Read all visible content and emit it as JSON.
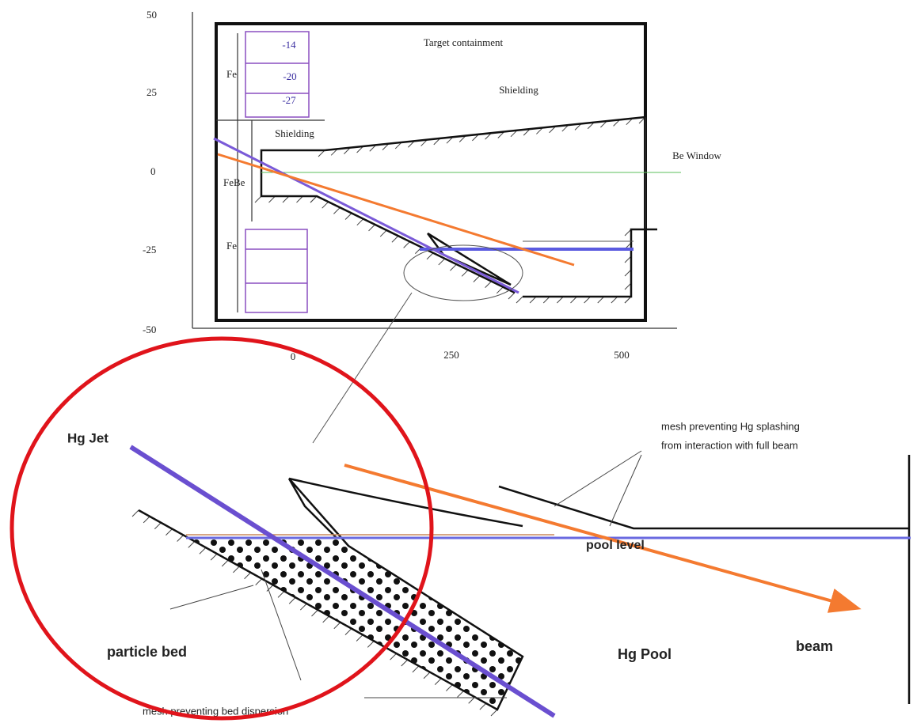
{
  "top_plot": {
    "y_ticks": [
      "50",
      "25",
      "0",
      "-25",
      "-50"
    ],
    "x_ticks": [
      "0",
      "250",
      "500"
    ],
    "box_labels": [
      "-14",
      "-20",
      "-27"
    ],
    "region_labels": {
      "fe_top": "Fe",
      "febe": "FeBe",
      "fe_bottom": "Fe",
      "target": "Target containment",
      "shielding_right": "Shielding",
      "shielding_left": "Shielding",
      "window": "Be Window"
    }
  },
  "detail": {
    "jet": "Hg Jet",
    "mesh_splash": [
      "mesh preventing Hg splashing",
      "from interaction with full beam"
    ],
    "pool_level": "pool level",
    "particle_bed": "particle bed",
    "pool": "Hg Pool",
    "beam": "beam",
    "mesh_bed": "mesh preventing bed dispersion"
  }
}
